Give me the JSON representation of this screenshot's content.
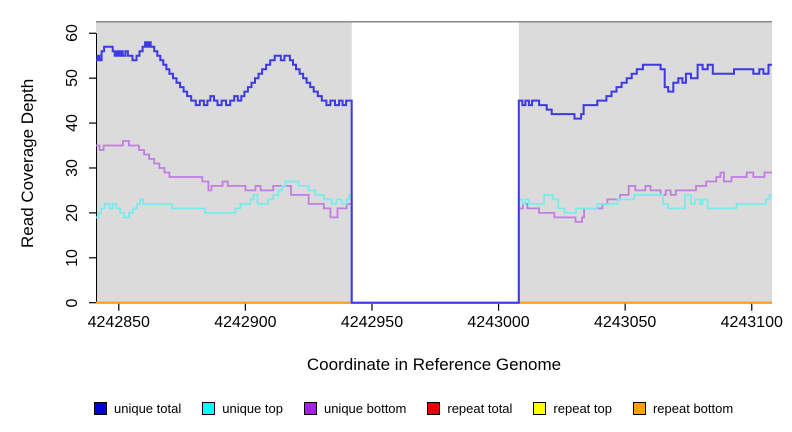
{
  "chart_data": {
    "type": "line",
    "step": true,
    "title": "",
    "xlabel": "Coordinate in Reference Genome",
    "ylabel": "Read Coverage Depth",
    "xlim": [
      4242841,
      4243108
    ],
    "ylim": [
      0,
      62.7
    ],
    "x_ticks": [
      4242850,
      4242900,
      4242950,
      4243000,
      4243050,
      4243100
    ],
    "y_ticks": [
      0,
      10,
      20,
      30,
      40,
      50,
      60
    ],
    "grid": false,
    "legend_position": "bottom",
    "plot_bg": "#dbdbdb",
    "top_border_color": "#8a8a8a",
    "axis_color": "#000000",
    "gap_region": {
      "from": 4242942,
      "to": 4243008,
      "fill": "#ffffff"
    },
    "draw_order": [
      3,
      4,
      5,
      2,
      1,
      0
    ],
    "series": [
      {
        "name": "unique total",
        "legend_color": "#0000d8",
        "line_color": "#3d3ae2",
        "line_width": 2,
        "points": [
          [
            4242841,
            54
          ],
          [
            4242841.6,
            55
          ],
          [
            4242842.4,
            54
          ],
          [
            4242843.2,
            56
          ],
          [
            4242844.2,
            57
          ],
          [
            4242847.6,
            56
          ],
          [
            4242848.4,
            55
          ],
          [
            4242849.2,
            56
          ],
          [
            4242850,
            55
          ],
          [
            4242850.8,
            56
          ],
          [
            4242851.6,
            55
          ],
          [
            4242852.6,
            56
          ],
          [
            4242853.6,
            55
          ],
          [
            4242855.4,
            54
          ],
          [
            4242857,
            55
          ],
          [
            4242858.2,
            56
          ],
          [
            4242859.4,
            57
          ],
          [
            4242860.4,
            58
          ],
          [
            4242861.2,
            57
          ],
          [
            4242861.8,
            58
          ],
          [
            4242862.6,
            57
          ],
          [
            4242864,
            56
          ],
          [
            4242865.2,
            55
          ],
          [
            4242866.4,
            54
          ],
          [
            4242867.6,
            53
          ],
          [
            4242868.8,
            52
          ],
          [
            4242870,
            51
          ],
          [
            4242871.4,
            50
          ],
          [
            4242872.8,
            49
          ],
          [
            4242874.2,
            48
          ],
          [
            4242875.6,
            47
          ],
          [
            4242877,
            46
          ],
          [
            4242878.6,
            45
          ],
          [
            4242880.4,
            44
          ],
          [
            4242882,
            45
          ],
          [
            4242883.6,
            44
          ],
          [
            4242885,
            45
          ],
          [
            4242886.2,
            46
          ],
          [
            4242887.6,
            45
          ],
          [
            4242889,
            44
          ],
          [
            4242890.6,
            45
          ],
          [
            4242892.4,
            44
          ],
          [
            4242894,
            45
          ],
          [
            4242895.6,
            46
          ],
          [
            4242897,
            45
          ],
          [
            4242898.4,
            46
          ],
          [
            4242899.6,
            47
          ],
          [
            4242901,
            48
          ],
          [
            4242902.4,
            49
          ],
          [
            4242903.8,
            50
          ],
          [
            4242905.2,
            51
          ],
          [
            4242906.6,
            52
          ],
          [
            4242908.2,
            53
          ],
          [
            4242909.8,
            54
          ],
          [
            4242911.6,
            55
          ],
          [
            4242914,
            54
          ],
          [
            4242915.4,
            55
          ],
          [
            4242917.6,
            54
          ],
          [
            4242918.8,
            53
          ],
          [
            4242920,
            52
          ],
          [
            4242921.4,
            51
          ],
          [
            4242922.8,
            50
          ],
          [
            4242924.2,
            49
          ],
          [
            4242925.6,
            48
          ],
          [
            4242927,
            47
          ],
          [
            4242928.6,
            46
          ],
          [
            4242930.2,
            45
          ],
          [
            4242932,
            44
          ],
          [
            4242933.6,
            45
          ],
          [
            4242935.4,
            44
          ],
          [
            4242937,
            45
          ],
          [
            4242938.4,
            44
          ],
          [
            4242939.8,
            45
          ],
          [
            4242942,
            0
          ],
          [
            4243008,
            45
          ],
          [
            4243009.4,
            44
          ],
          [
            4243010.6,
            45
          ],
          [
            4243012,
            44
          ],
          [
            4243013.2,
            45
          ],
          [
            4243016,
            44
          ],
          [
            4243019,
            43
          ],
          [
            4243021,
            42
          ],
          [
            4243030,
            41
          ],
          [
            4243032.6,
            42
          ],
          [
            4243033.6,
            44
          ],
          [
            4243039,
            45
          ],
          [
            4243042.6,
            46
          ],
          [
            4243044.6,
            47
          ],
          [
            4243046.6,
            48
          ],
          [
            4243048.6,
            49
          ],
          [
            4243050.6,
            50
          ],
          [
            4243052.6,
            51
          ],
          [
            4243054.6,
            52
          ],
          [
            4243057,
            53
          ],
          [
            4243064,
            52
          ],
          [
            4243065.6,
            48
          ],
          [
            4243067,
            47
          ],
          [
            4243069,
            49
          ],
          [
            4243071,
            50
          ],
          [
            4243072.6,
            49
          ],
          [
            4243074,
            51
          ],
          [
            4243076,
            50
          ],
          [
            4243078.6,
            53
          ],
          [
            4243080.6,
            52
          ],
          [
            4243082.6,
            53
          ],
          [
            4243084.6,
            51
          ],
          [
            4243093,
            52
          ],
          [
            4243100.6,
            51
          ],
          [
            4243103,
            52
          ],
          [
            4243104.6,
            51
          ],
          [
            4243106.6,
            53
          ]
        ]
      },
      {
        "name": "unique top",
        "legend_color": "#00ffff",
        "line_color": "#78ecec",
        "line_width": 1.8,
        "points": [
          [
            4242841,
            19
          ],
          [
            4242842,
            20
          ],
          [
            4242843,
            21
          ],
          [
            4242844.4,
            22
          ],
          [
            4242846.4,
            21
          ],
          [
            4242847.6,
            22
          ],
          [
            4242849,
            21
          ],
          [
            4242850.6,
            20
          ],
          [
            4242852,
            19
          ],
          [
            4242854,
            20
          ],
          [
            4242855.6,
            21
          ],
          [
            4242857.2,
            22
          ],
          [
            4242858.4,
            23
          ],
          [
            4242859.6,
            22
          ],
          [
            4242871,
            21
          ],
          [
            4242884,
            20
          ],
          [
            4242896,
            21
          ],
          [
            4242898,
            22
          ],
          [
            4242902,
            23
          ],
          [
            4242903.2,
            24
          ],
          [
            4242904.8,
            22
          ],
          [
            4242909,
            23
          ],
          [
            4242911,
            24
          ],
          [
            4242913,
            25
          ],
          [
            4242914.6,
            26
          ],
          [
            4242915.8,
            27
          ],
          [
            4242921,
            26
          ],
          [
            4242925,
            25
          ],
          [
            4242927.6,
            24
          ],
          [
            4242931,
            23
          ],
          [
            4242934,
            22
          ],
          [
            4242936,
            23
          ],
          [
            4242938,
            22
          ],
          [
            4242940,
            23
          ],
          [
            4242941,
            24
          ],
          [
            4242942,
            0
          ],
          [
            4243008,
            23
          ],
          [
            4243009.4,
            22
          ],
          [
            4243010.6,
            23
          ],
          [
            4243012,
            22
          ],
          [
            4243018,
            24
          ],
          [
            4243021.6,
            23
          ],
          [
            4243023.6,
            21
          ],
          [
            4243026,
            20
          ],
          [
            4243030.6,
            21
          ],
          [
            4243039,
            22
          ],
          [
            4243047,
            23
          ],
          [
            4243053.6,
            24
          ],
          [
            4243065,
            22
          ],
          [
            4243067,
            21
          ],
          [
            4243073.6,
            24
          ],
          [
            4243076,
            22
          ],
          [
            4243077.6,
            23
          ],
          [
            4243079.6,
            22
          ],
          [
            4243080.6,
            23
          ],
          [
            4243082.6,
            21
          ],
          [
            4243094,
            22
          ],
          [
            4243105.6,
            23
          ],
          [
            4243107,
            24
          ]
        ]
      },
      {
        "name": "unique bottom",
        "legend_color": "#a321ee",
        "line_color": "#c07ee2",
        "line_width": 1.8,
        "points": [
          [
            4242841,
            35
          ],
          [
            4242842.4,
            34
          ],
          [
            4242844,
            35
          ],
          [
            4242851.6,
            36
          ],
          [
            4242854,
            35
          ],
          [
            4242858,
            34
          ],
          [
            4242860,
            33
          ],
          [
            4242862,
            32
          ],
          [
            4242864,
            31
          ],
          [
            4242866,
            30
          ],
          [
            4242868,
            29
          ],
          [
            4242870,
            28
          ],
          [
            4242883,
            27
          ],
          [
            4242885.4,
            25
          ],
          [
            4242886.6,
            26
          ],
          [
            4242891,
            27
          ],
          [
            4242893,
            26
          ],
          [
            4242900,
            25
          ],
          [
            4242904,
            26
          ],
          [
            4242906,
            25
          ],
          [
            4242911,
            26
          ],
          [
            4242918,
            24
          ],
          [
            4242925,
            22
          ],
          [
            4242931,
            21
          ],
          [
            4242933.6,
            19
          ],
          [
            4242936.4,
            21
          ],
          [
            4242940,
            22
          ],
          [
            4242942,
            0
          ],
          [
            4243008,
            21
          ],
          [
            4243009.6,
            22
          ],
          [
            4243011.4,
            21
          ],
          [
            4243016,
            20
          ],
          [
            4243022,
            19
          ],
          [
            4243030.4,
            18
          ],
          [
            4243033,
            19
          ],
          [
            4243033.8,
            21
          ],
          [
            4243041,
            22
          ],
          [
            4243043,
            23
          ],
          [
            4243048,
            24
          ],
          [
            4243051.4,
            26
          ],
          [
            4243054,
            25
          ],
          [
            4243058,
            26
          ],
          [
            4243060,
            25
          ],
          [
            4243064,
            24
          ],
          [
            4243066,
            25
          ],
          [
            4243068,
            24
          ],
          [
            4243070,
            25
          ],
          [
            4243078,
            26
          ],
          [
            4243082,
            27
          ],
          [
            4243086,
            28
          ],
          [
            4243087.6,
            29
          ],
          [
            4243089,
            27
          ],
          [
            4243092,
            28
          ],
          [
            4243098,
            29
          ],
          [
            4243100.6,
            28
          ],
          [
            4243105,
            29
          ]
        ]
      },
      {
        "name": "repeat total",
        "legend_color": "#ee0000",
        "line_color": "#ee0000",
        "line_width": 1.8,
        "points": [
          [
            4242841,
            0
          ],
          [
            4243108,
            0
          ]
        ]
      },
      {
        "name": "repeat top",
        "legend_color": "#ffff00",
        "line_color": "#ffff00",
        "line_width": 1.8,
        "points": [
          [
            4242841,
            0
          ],
          [
            4243108,
            0
          ]
        ]
      },
      {
        "name": "repeat bottom",
        "legend_color": "#ff9f00",
        "line_color": "#ff9b26",
        "line_width": 2,
        "points": [
          [
            4242841,
            0
          ],
          [
            4243108,
            0
          ]
        ]
      }
    ]
  }
}
